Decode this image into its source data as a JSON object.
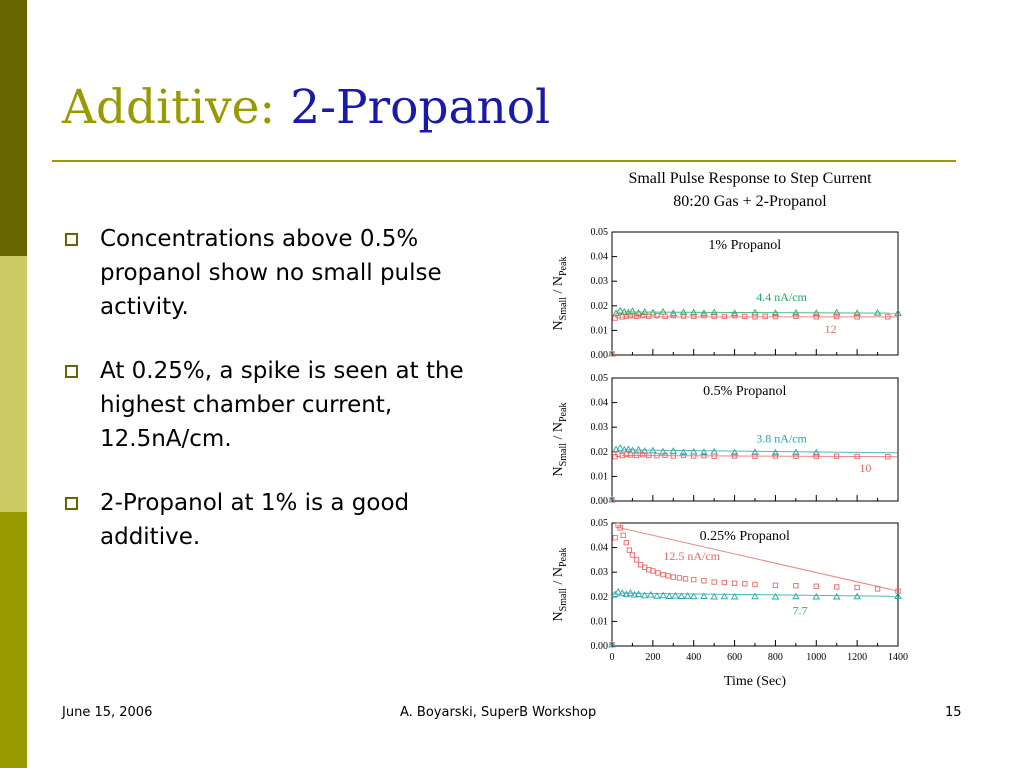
{
  "slide": {
    "title_part1": "Additive:",
    "title_part2": "2-Propanol",
    "bullets": [
      "Concentrations above 0.5% propanol show no small pulse activity.",
      "At 0.25%, a spike is seen at the highest chamber current, 12.5nA/cm.",
      "2-Propanol at 1% is a good additive."
    ],
    "footer": {
      "date": "June 15, 2006",
      "center": "A. Boyarski,  SuperB Workshop",
      "page": "15"
    },
    "colors": {
      "title_olive": "#999900",
      "title_blue": "#1a1aaa",
      "bar_dark": "#666600",
      "bar_light": "#cccc66",
      "bar_mid": "#999900"
    }
  },
  "chart_data": {
    "type": "scatter",
    "title": "Small Pulse Response to Step Current",
    "subtitle": "80:20 Gas  +  2-Propanol",
    "xlabel": "Time (Sec)",
    "ylabel_main": "N",
    "ylabel_sub1": "Small",
    "ylabel_mid": " / N",
    "ylabel_sub2": "Peak",
    "xlim": [
      0,
      1400
    ],
    "ylim": [
      0,
      0.05
    ],
    "x_ticks": [
      0,
      200,
      400,
      600,
      800,
      1000,
      1200,
      1400
    ],
    "x_tick_labels": [
      "0",
      "200",
      "400",
      "600",
      "800",
      "1000",
      "1200",
      "1400"
    ],
    "y_ticks": [
      0,
      0.01,
      0.02,
      0.03,
      0.04,
      0.05
    ],
    "y_tick_labels": [
      "0.00",
      "0.01",
      "0.02",
      "0.03",
      "0.04",
      "0.05"
    ],
    "panels": [
      {
        "label": "1%  Propanol",
        "series": [
          {
            "name": "4.4 nA/cm",
            "marker": "triangle",
            "color": "#22aa66",
            "label_x": 830,
            "label_y": 0.0235,
            "x": [
              0,
              20,
              40,
              60,
              80,
              100,
              130,
              160,
              200,
              250,
              300,
              350,
              400,
              450,
              500,
              600,
              700,
              800,
              900,
              1000,
              1100,
              1200,
              1300,
              1400
            ],
            "y": [
              0.0005,
              0.017,
              0.018,
              0.0175,
              0.0172,
              0.0178,
              0.017,
              0.0174,
              0.0172,
              0.0175,
              0.017,
              0.0173,
              0.0172,
              0.017,
              0.0173,
              0.017,
              0.0172,
              0.017,
              0.0171,
              0.017,
              0.0172,
              0.017,
              0.0171,
              0.017
            ]
          },
          {
            "name": "12",
            "marker": "square",
            "color": "#ee6666",
            "label_x": 1070,
            "label_y": 0.0105,
            "x": [
              0,
              15,
              30,
              50,
              70,
              90,
              120,
              150,
              180,
              220,
              260,
              300,
              350,
              400,
              450,
              500,
              550,
              600,
              650,
              700,
              750,
              800,
              900,
              1000,
              1100,
              1200,
              1350
            ],
            "y": [
              0.0005,
              0.015,
              0.016,
              0.0155,
              0.0158,
              0.016,
              0.0157,
              0.016,
              0.0158,
              0.016,
              0.0157,
              0.016,
              0.0158,
              0.0157,
              0.016,
              0.0158,
              0.0157,
              0.016,
              0.0157,
              0.0155,
              0.0157,
              0.0156,
              0.0157,
              0.0155,
              0.0156,
              0.0155,
              0.0155
            ]
          }
        ]
      },
      {
        "label": "0.5%   Propanol",
        "series": [
          {
            "name": "3.8 nA/cm",
            "marker": "triangle",
            "color": "#22aaaa",
            "label_x": 830,
            "label_y": 0.0255,
            "x": [
              0,
              20,
              40,
              60,
              80,
              100,
              130,
              160,
              200,
              250,
              300,
              350,
              400,
              450,
              500,
              600,
              700,
              800,
              900,
              1000
            ],
            "y": [
              0.0005,
              0.021,
              0.0215,
              0.0208,
              0.021,
              0.0205,
              0.0208,
              0.0203,
              0.0205,
              0.02,
              0.0203,
              0.0198,
              0.02,
              0.0198,
              0.02,
              0.0197,
              0.0198,
              0.0196,
              0.0197,
              0.0196
            ]
          },
          {
            "name": "10",
            "marker": "square",
            "color": "#ee6666",
            "label_x": 1240,
            "label_y": 0.0135,
            "x": [
              0,
              15,
              30,
              50,
              70,
              90,
              120,
              150,
              180,
              220,
              260,
              300,
              350,
              400,
              450,
              500,
              600,
              700,
              800,
              900,
              1000,
              1100,
              1200,
              1350
            ],
            "y": [
              0.0005,
              0.018,
              0.019,
              0.0185,
              0.019,
              0.0187,
              0.0185,
              0.0188,
              0.0185,
              0.0184,
              0.0186,
              0.0183,
              0.0185,
              0.0183,
              0.0184,
              0.0182,
              0.0183,
              0.0182,
              0.0183,
              0.0182,
              0.0181,
              0.0182,
              0.0181,
              0.018
            ]
          }
        ]
      },
      {
        "label": "0.25%   Propanol",
        "series": [
          {
            "name": "12.5 nA/cm",
            "marker": "square",
            "color": "#ee6666",
            "label_x": 390,
            "label_y": 0.0365,
            "x": [
              0,
              15,
              30,
              40,
              55,
              70,
              85,
              100,
              120,
              140,
              160,
              180,
              200,
              225,
              250,
              275,
              300,
              330,
              360,
              400,
              450,
              500,
              550,
              600,
              650,
              700,
              800,
              900,
              1000,
              1100,
              1200,
              1300,
              1400
            ],
            "y": [
              0.0005,
              0.044,
              0.049,
              0.048,
              0.045,
              0.042,
              0.039,
              0.037,
              0.035,
              0.033,
              0.032,
              0.031,
              0.0305,
              0.0297,
              0.029,
              0.0285,
              0.028,
              0.0277,
              0.0273,
              0.027,
              0.0265,
              0.026,
              0.0258,
              0.0255,
              0.0253,
              0.025,
              0.0247,
              0.0245,
              0.0243,
              0.024,
              0.0238,
              0.0232,
              0.0223
            ]
          },
          {
            "name": "7.7",
            "marker": "triangle",
            "color": "#22aaaa",
            "label_x": 920,
            "label_y": 0.0145,
            "x": [
              0,
              15,
              30,
              50,
              70,
              90,
              110,
              130,
              160,
              190,
              220,
              250,
              280,
              310,
              340,
              370,
              400,
              450,
              500,
              550,
              600,
              700,
              800,
              900,
              1000,
              1100,
              1200,
              1400
            ],
            "y": [
              0.0005,
              0.021,
              0.022,
              0.0215,
              0.021,
              0.0215,
              0.0208,
              0.021,
              0.0205,
              0.0208,
              0.0203,
              0.0205,
              0.0202,
              0.0204,
              0.0202,
              0.0203,
              0.0201,
              0.0202,
              0.02,
              0.0201,
              0.02,
              0.0201,
              0.02,
              0.0201,
              0.02,
              0.02,
              0.0201,
              0.0202
            ]
          }
        ]
      }
    ]
  }
}
